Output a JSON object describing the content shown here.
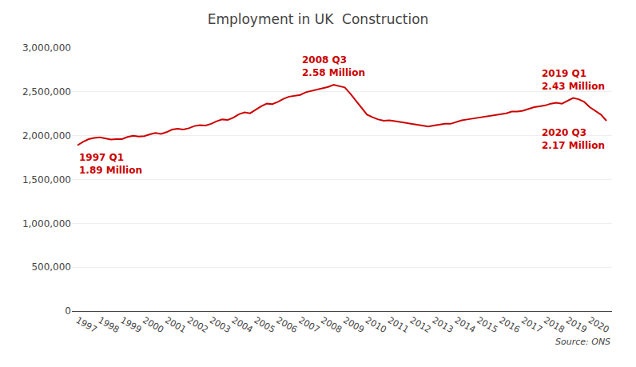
{
  "chart_data": {
    "type": "line",
    "title": "Employment in UK  Construction",
    "color": "#cc0000",
    "grid": true,
    "source": "Source: ONS",
    "ylim": [
      0,
      3000000
    ],
    "yticks": [
      0,
      {
        "value": 500000,
        "label": "500,000"
      },
      {
        "value": 1000000,
        "label": "1,000,000"
      },
      {
        "value": 1500000,
        "label": "1,500,000"
      },
      {
        "value": 2000000,
        "label": "2,000,000"
      },
      {
        "value": 2500000,
        "label": "2,500,000"
      },
      {
        "value": 3000000,
        "label": "3,000,000"
      }
    ],
    "annotations": [
      {
        "text": "1997 Q1\n1.89 Million",
        "x": 0,
        "y": 1890000
      },
      {
        "text": "2008 Q3\n2.58 Million",
        "x": 46,
        "y": 2580000
      },
      {
        "text": "2019 Q1\n2.43 Million",
        "x": 89,
        "y": 2430000
      },
      {
        "text": "2020 Q3\n2.17 Million",
        "x": 95,
        "y": 2170000
      }
    ],
    "categories": [
      "1997",
      null,
      null,
      null,
      "1998",
      null,
      null,
      null,
      "1999",
      null,
      null,
      null,
      "2000",
      null,
      null,
      null,
      "2001",
      null,
      null,
      null,
      "2002",
      null,
      null,
      null,
      "2003",
      null,
      null,
      null,
      "2004",
      null,
      null,
      null,
      "2005",
      null,
      null,
      null,
      "2006",
      null,
      null,
      null,
      "2007",
      null,
      null,
      null,
      "2008",
      null,
      null,
      null,
      "2009",
      null,
      null,
      null,
      "2010",
      null,
      null,
      null,
      "2011",
      null,
      null,
      null,
      "2012",
      null,
      null,
      null,
      "2013",
      null,
      null,
      null,
      "2014",
      null,
      null,
      null,
      "2015",
      null,
      null,
      null,
      "2016",
      null,
      null,
      null,
      "2017",
      null,
      null,
      null,
      "2018",
      null,
      null,
      null,
      "2019",
      null,
      null,
      null,
      "2020",
      null,
      null,
      null
    ],
    "values": [
      1890000,
      1930000,
      1960000,
      1975000,
      1980000,
      1965000,
      1955000,
      1960000,
      1960000,
      1985000,
      2000000,
      1990000,
      1995000,
      2015000,
      2030000,
      2020000,
      2040000,
      2070000,
      2080000,
      2070000,
      2085000,
      2110000,
      2120000,
      2115000,
      2135000,
      2165000,
      2185000,
      2180000,
      2205000,
      2245000,
      2265000,
      2255000,
      2295000,
      2335000,
      2365000,
      2360000,
      2385000,
      2420000,
      2445000,
      2455000,
      2465000,
      2495000,
      2510000,
      2520000,
      2540000,
      2555000,
      2580000,
      2565000,
      2550000,
      2480000,
      2400000,
      2310000,
      2240000,
      2210000,
      2185000,
      2170000,
      2175000,
      2165000,
      2155000,
      2150000,
      2135000,
      2125000,
      2115000,
      2105000,
      2115000,
      2125000,
      2135000,
      2135000,
      2155000,
      2175000,
      2185000,
      2195000,
      2205000,
      2215000,
      2225000,
      2235000,
      2245000,
      2255000,
      2275000,
      2275000,
      2285000,
      2305000,
      2325000,
      2335000,
      2345000,
      2365000,
      2375000,
      2365000,
      2395000,
      2430000,
      2415000,
      2385000,
      2325000,
      2285000,
      2240000,
      2170000
    ]
  }
}
